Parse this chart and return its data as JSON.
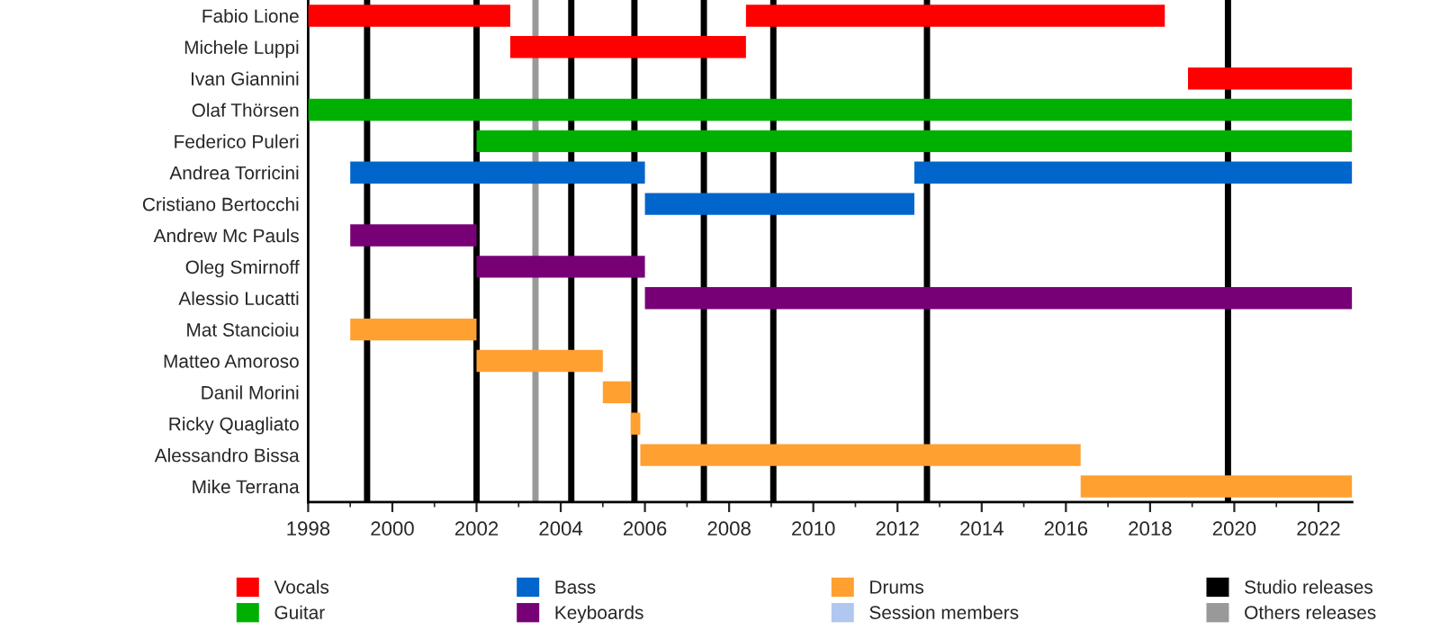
{
  "chart_data": {
    "type": "bar",
    "orientation": "horizontal",
    "categories": [
      "Fabio Lione",
      "Michele Luppi",
      "Ivan Giannini",
      "Olaf Thörsen",
      "Federico Puleri",
      "Andrea Torricini",
      "Cristiano Bertocchi",
      "Andrew Mc Pauls",
      "Oleg Smirnoff",
      "Alessio Lucatti",
      "Mat Stancioiu",
      "Matteo Amoroso",
      "Danil Morini",
      "Ricky Quagliato",
      "Alessandro Bissa",
      "Mike Terrana"
    ],
    "series": [
      {
        "name": "Vocals",
        "color": "#ff0000",
        "base": [
          1998,
          2002.8,
          2018.9,
          null,
          null,
          null,
          null,
          null,
          null,
          null,
          null,
          null,
          null,
          null,
          null,
          null
        ],
        "values": [
          4.8,
          5.6,
          3.9,
          null,
          null,
          null,
          null,
          null,
          null,
          null,
          null,
          null,
          null,
          null,
          null,
          null
        ]
      },
      {
        "name": "Guitar",
        "color": "#00b000",
        "base": [
          null,
          null,
          null,
          1998,
          2002,
          null,
          null,
          null,
          null,
          null,
          null,
          null,
          null,
          null,
          null,
          null
        ],
        "values": [
          null,
          null,
          null,
          24.8,
          20.8,
          null,
          null,
          null,
          null,
          null,
          null,
          null,
          null,
          null,
          null,
          null
        ]
      },
      {
        "name": "Bass",
        "color": "#0066cc",
        "base": [
          null,
          null,
          null,
          null,
          null,
          1999,
          2006,
          null,
          null,
          null,
          null,
          null,
          null,
          null,
          null,
          null
        ],
        "values": [
          null,
          null,
          null,
          null,
          null,
          7,
          6.4,
          null,
          null,
          null,
          null,
          null,
          null,
          null,
          null,
          null
        ]
      },
      {
        "name": "Keyboards",
        "color": "#770077",
        "base": [
          null,
          null,
          null,
          null,
          null,
          null,
          null,
          1999,
          2002,
          2006,
          null,
          null,
          null,
          null,
          null,
          null
        ],
        "values": [
          null,
          null,
          null,
          null,
          null,
          null,
          null,
          3,
          4,
          16.8,
          null,
          null,
          null,
          null,
          null,
          null
        ]
      },
      {
        "name": "Drums",
        "color": "#ffa030",
        "base": [
          null,
          null,
          null,
          null,
          null,
          null,
          null,
          null,
          null,
          null,
          1999,
          2002,
          2005,
          2005.66,
          2005.89,
          2016.35
        ],
        "values": [
          null,
          null,
          null,
          null,
          null,
          null,
          null,
          null,
          null,
          null,
          3,
          3,
          0.66,
          0.23,
          10.46,
          6.45
        ]
      },
      {
        "name": "Session members",
        "color": "#b0c8f0",
        "base": [
          null,
          null,
          null,
          null,
          null,
          null,
          null,
          null,
          null,
          null,
          null,
          null,
          null,
          null,
          null,
          null
        ],
        "values": [
          null,
          null,
          null,
          null,
          null,
          null,
          null,
          null,
          null,
          null,
          null,
          null,
          null,
          null,
          null,
          null
        ]
      },
      {
        "color": "#ff0000",
        "base": [
          2008.4,
          null,
          null,
          null,
          null,
          null,
          null,
          null,
          null,
          null,
          null,
          null,
          null,
          null,
          null,
          null
        ],
        "values": [
          9.95,
          null,
          null,
          null,
          null,
          null,
          null,
          null,
          null,
          null,
          null,
          null,
          null,
          null,
          null,
          null
        ]
      },
      {
        "color": "#0066cc",
        "base": [
          null,
          null,
          null,
          null,
          null,
          2012.4,
          null,
          null,
          null,
          null,
          null,
          null,
          null,
          null,
          null,
          null
        ],
        "values": [
          null,
          null,
          null,
          null,
          null,
          10.4,
          null,
          null,
          null,
          null,
          null,
          null,
          null,
          null,
          null,
          null
        ]
      }
    ],
    "ref_lines": [
      {
        "axis": "x",
        "value": 1999.4,
        "color": "#000000",
        "label": "Studio releases"
      },
      {
        "axis": "x",
        "value": 2002.0,
        "color": "#000000"
      },
      {
        "axis": "x",
        "value": 2003.4,
        "color": "#999999",
        "label": "Others releases"
      },
      {
        "axis": "x",
        "value": 2004.25,
        "color": "#000000"
      },
      {
        "axis": "x",
        "value": 2005.75,
        "color": "#000000"
      },
      {
        "axis": "x",
        "value": 2007.4,
        "color": "#000000"
      },
      {
        "axis": "x",
        "value": 2009.05,
        "color": "#000000"
      },
      {
        "axis": "x",
        "value": 2012.7,
        "color": "#000000"
      },
      {
        "axis": "x",
        "value": 2019.85,
        "color": "#000000"
      }
    ],
    "xlim": [
      1998,
      2022.8
    ],
    "xticks": [
      1998,
      2000,
      2002,
      2004,
      2006,
      2008,
      2010,
      2012,
      2014,
      2016,
      2018,
      2020,
      2022
    ],
    "grid": false,
    "legend": "bottom"
  }
}
